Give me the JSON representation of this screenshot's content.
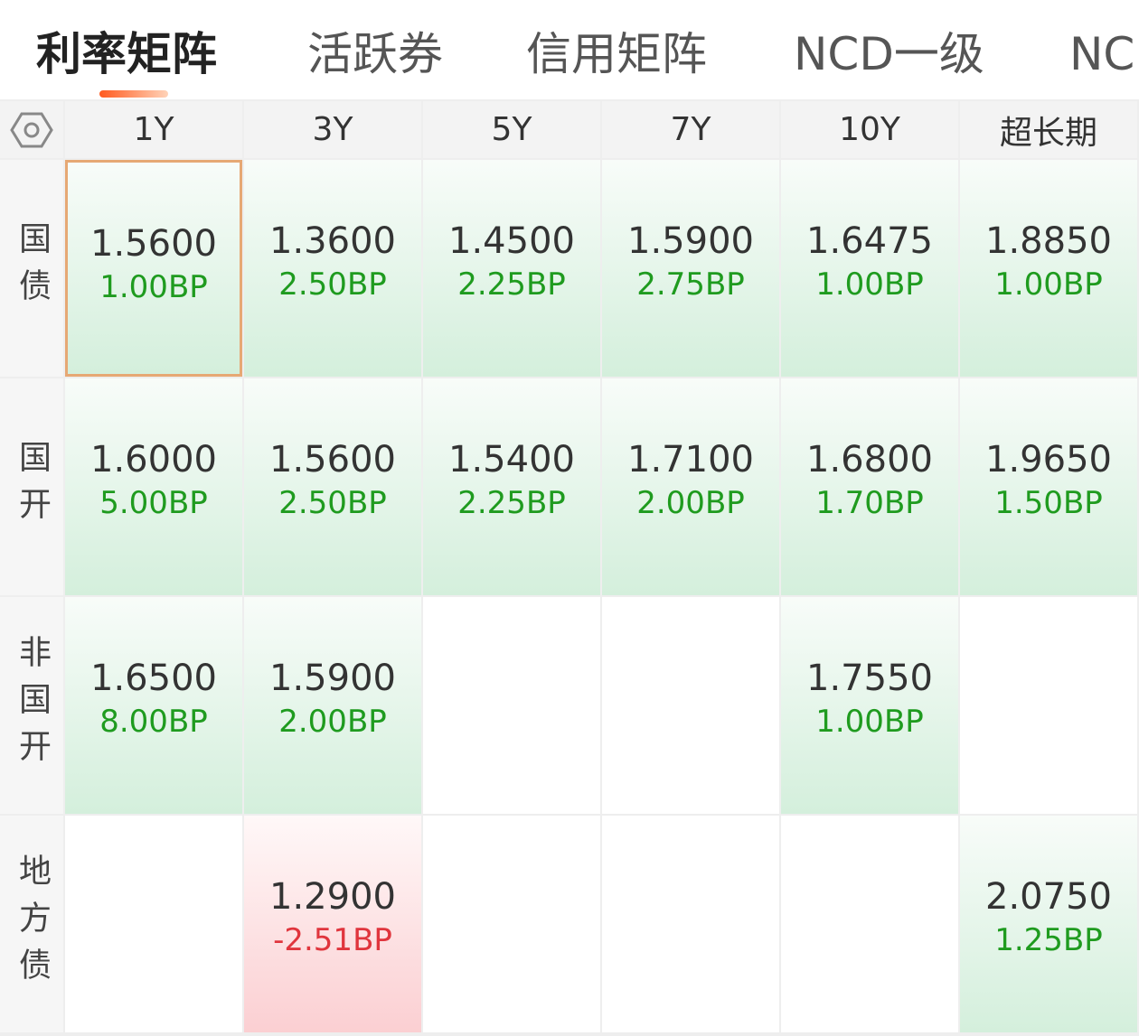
{
  "tabs": [
    "利率矩阵",
    "活跃券",
    "信用矩阵",
    "NCD一级",
    "NC"
  ],
  "columns": [
    "1Y",
    "3Y",
    "5Y",
    "7Y",
    "10Y",
    "超长期"
  ],
  "rows": [
    {
      "label": "国债",
      "cells": [
        {
          "value": "1.5600",
          "change": "1.00BP"
        },
        {
          "value": "1.3600",
          "change": "2.50BP"
        },
        {
          "value": "1.4500",
          "change": "2.25BP"
        },
        {
          "value": "1.5900",
          "change": "2.75BP"
        },
        {
          "value": "1.6475",
          "change": "1.00BP"
        },
        {
          "value": "1.8850",
          "change": "1.00BP"
        }
      ]
    },
    {
      "label": "国开",
      "cells": [
        {
          "value": "1.6000",
          "change": "5.00BP"
        },
        {
          "value": "1.5600",
          "change": "2.50BP"
        },
        {
          "value": "1.5400",
          "change": "2.25BP"
        },
        {
          "value": "1.7100",
          "change": "2.00BP"
        },
        {
          "value": "1.6800",
          "change": "1.70BP"
        },
        {
          "value": "1.9650",
          "change": "1.50BP"
        }
      ]
    },
    {
      "label": "非国开",
      "cells": [
        {
          "value": "1.6500",
          "change": "8.00BP"
        },
        {
          "value": "1.5900",
          "change": "2.00BP"
        },
        null,
        null,
        {
          "value": "1.7550",
          "change": "1.00BP"
        },
        null
      ]
    },
    {
      "label": "地方债",
      "cells": [
        null,
        {
          "value": "1.2900",
          "change": "-2.51BP"
        },
        null,
        null,
        null,
        {
          "value": "2.0750",
          "change": "1.25BP"
        }
      ]
    }
  ]
}
